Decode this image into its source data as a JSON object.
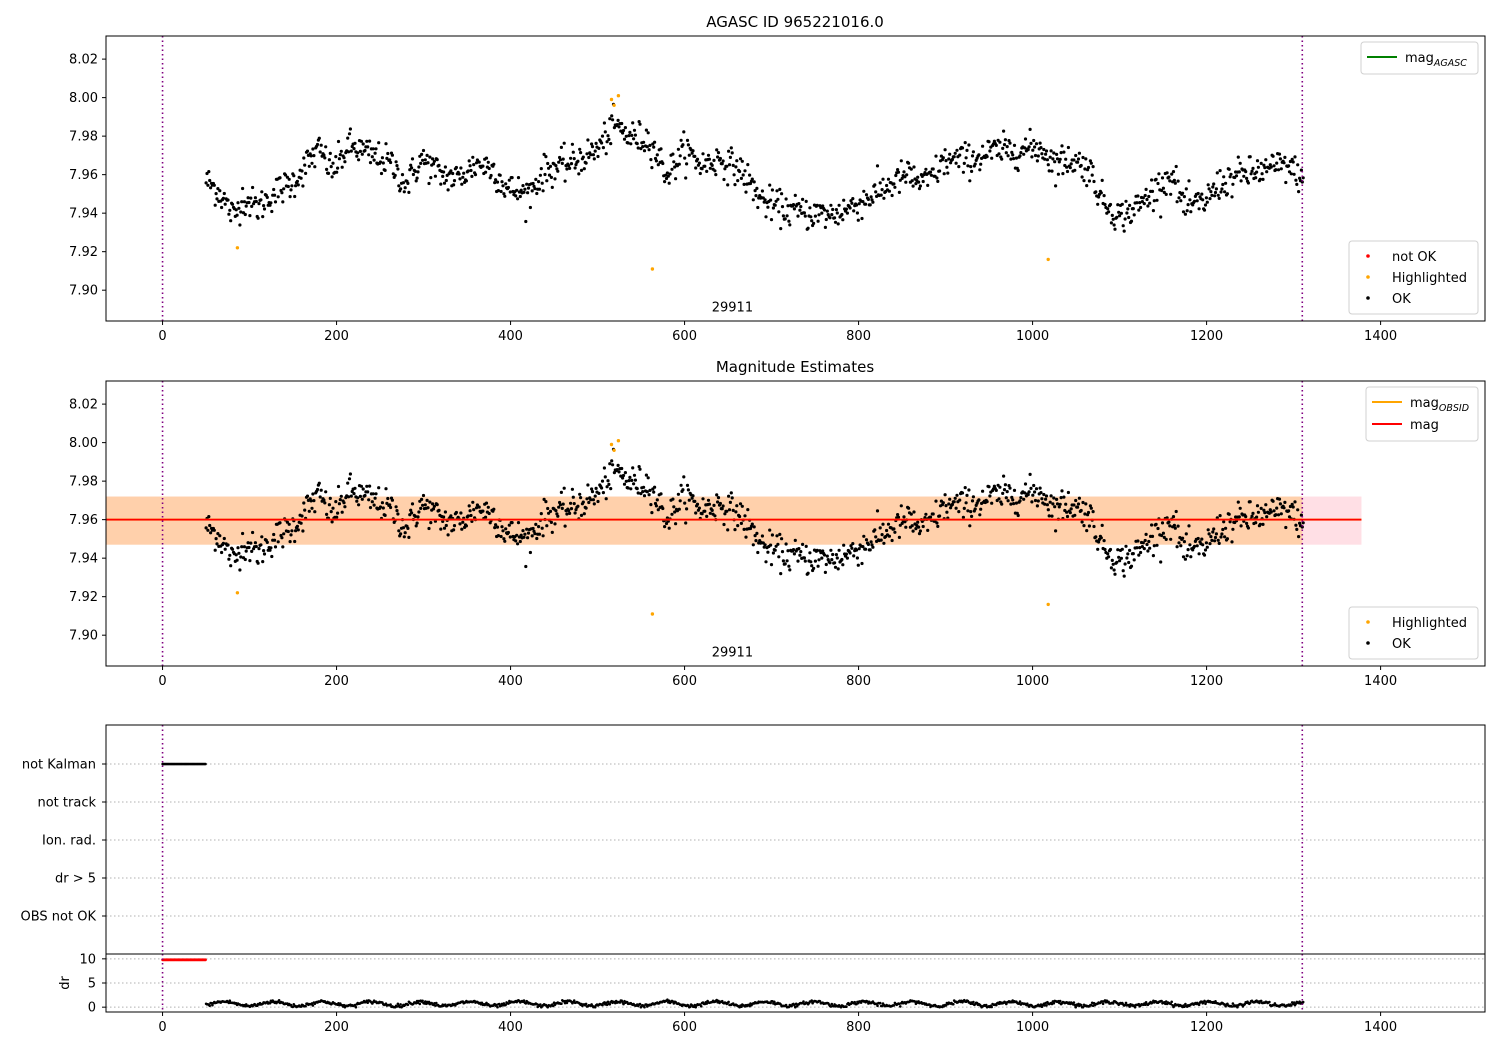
{
  "figure": {
    "top_title": "AGASC ID 965221016.0",
    "middle_title": "Magnitude Estimates",
    "obsid_label": "29911"
  },
  "chart_data": [
    {
      "id": "top",
      "type": "scatter",
      "title": "AGASC ID 965221016.0",
      "xlim": [
        -65,
        1520
      ],
      "ylim": [
        7.884,
        8.032
      ],
      "x_ticks": [
        0,
        200,
        400,
        600,
        800,
        1000,
        1200,
        1400
      ],
      "y_ticks": [
        7.9,
        7.92,
        7.94,
        7.96,
        7.98,
        8.0,
        8.02
      ],
      "vlines": [
        0,
        1310
      ],
      "annotation": "29911",
      "legend_lines": [
        {
          "name": "mag",
          "sub": "AGASC",
          "color": "#008000"
        }
      ],
      "legend_markers": [
        {
          "name": "not OK",
          "color": "#ff0000"
        },
        {
          "name": "Highlighted",
          "color": "#ffa500"
        },
        {
          "name": "OK",
          "color": "#000000"
        }
      ],
      "series": [
        {
          "name": "OK",
          "color": "#000000",
          "from_curve": true
        },
        {
          "name": "Highlighted",
          "color": "#ffa500",
          "points": [
            [
              86,
              7.922
            ],
            [
              516,
              7.999
            ],
            [
              519,
              7.996
            ],
            [
              524,
              8.001
            ],
            [
              563,
              7.911
            ],
            [
              1018,
              7.916
            ]
          ]
        }
      ]
    },
    {
      "id": "middle",
      "type": "scatter",
      "title": "Magnitude Estimates",
      "xlim": [
        -65,
        1520
      ],
      "ylim": [
        7.884,
        8.032
      ],
      "x_ticks": [
        0,
        200,
        400,
        600,
        800,
        1000,
        1200,
        1400
      ],
      "y_ticks": [
        7.9,
        7.92,
        7.94,
        7.96,
        7.98,
        8.0,
        8.02
      ],
      "vlines": [
        0,
        1310
      ],
      "annotation": "29911",
      "mag_line": 7.96,
      "mag_band": [
        7.947,
        7.972
      ],
      "obsid_band": [
        7.947,
        7.972
      ],
      "legend_lines": [
        {
          "name": "mag",
          "sub": "OBSID",
          "color": "#ffa500"
        },
        {
          "name": "mag",
          "sub": "",
          "color": "#ff0000"
        }
      ],
      "legend_markers": [
        {
          "name": "Highlighted",
          "color": "#ffa500"
        },
        {
          "name": "OK",
          "color": "#000000"
        }
      ],
      "series": [
        {
          "name": "OK",
          "color": "#000000",
          "from_curve": true
        },
        {
          "name": "Highlighted",
          "color": "#ffa500",
          "points": [
            [
              86,
              7.922
            ],
            [
              516,
              7.999
            ],
            [
              519,
              7.996
            ],
            [
              524,
              8.001
            ],
            [
              563,
              7.911
            ],
            [
              1018,
              7.916
            ]
          ]
        }
      ]
    },
    {
      "id": "flags",
      "type": "scatter",
      "xlim": [
        -65,
        1520
      ],
      "categories": [
        "not Kalman",
        "not track",
        "Ion. rad.",
        "dr > 5",
        "OBS not OK"
      ],
      "vlines": [
        0,
        1310
      ],
      "flag_runs": [
        {
          "category": "not Kalman",
          "x": [
            0,
            50
          ]
        }
      ]
    },
    {
      "id": "dr",
      "type": "scatter",
      "ylabel": "dr",
      "xlim": [
        -65,
        1520
      ],
      "ylim": [
        -1,
        11
      ],
      "x_ticks": [
        0,
        200,
        400,
        600,
        800,
        1000,
        1200,
        1400
      ],
      "y_ticks": [
        0,
        5,
        10
      ],
      "vlines": [
        0,
        1310
      ],
      "series": [
        {
          "name": "not OK",
          "color": "#ff0000",
          "x": [
            0,
            50
          ],
          "y": 9.8
        },
        {
          "name": "OK",
          "color": "#000000",
          "x": [
            50,
            1312
          ],
          "y_mean": 0.7
        }
      ]
    }
  ],
  "light_curve": {
    "x_range": [
      50,
      1312
    ],
    "step": 1.05,
    "knots": [
      [
        50,
        7.957
      ],
      [
        65,
        7.951
      ],
      [
        82,
        7.938
      ],
      [
        92,
        7.948
      ],
      [
        110,
        7.943
      ],
      [
        130,
        7.951
      ],
      [
        150,
        7.956
      ],
      [
        170,
        7.968
      ],
      [
        180,
        7.973
      ],
      [
        195,
        7.962
      ],
      [
        215,
        7.975
      ],
      [
        240,
        7.97
      ],
      [
        262,
        7.966
      ],
      [
        280,
        7.955
      ],
      [
        298,
        7.968
      ],
      [
        320,
        7.96
      ],
      [
        340,
        7.958
      ],
      [
        362,
        7.966
      ],
      [
        380,
        7.963
      ],
      [
        395,
        7.953
      ],
      [
        420,
        7.95
      ],
      [
        440,
        7.962
      ],
      [
        470,
        7.966
      ],
      [
        500,
        7.973
      ],
      [
        520,
        7.986
      ],
      [
        535,
        7.98
      ],
      [
        560,
        7.978
      ],
      [
        580,
        7.96
      ],
      [
        600,
        7.973
      ],
      [
        620,
        7.965
      ],
      [
        640,
        7.968
      ],
      [
        665,
        7.962
      ],
      [
        690,
        7.946
      ],
      [
        715,
        7.942
      ],
      [
        740,
        7.94
      ],
      [
        770,
        7.939
      ],
      [
        800,
        7.945
      ],
      [
        830,
        7.953
      ],
      [
        855,
        7.96
      ],
      [
        875,
        7.955
      ],
      [
        900,
        7.967
      ],
      [
        930,
        7.968
      ],
      [
        955,
        7.972
      ],
      [
        990,
        7.973
      ],
      [
        1010,
        7.974
      ],
      [
        1025,
        7.966
      ],
      [
        1045,
        7.968
      ],
      [
        1065,
        7.963
      ],
      [
        1080,
        7.947
      ],
      [
        1100,
        7.938
      ],
      [
        1120,
        7.943
      ],
      [
        1140,
        7.952
      ],
      [
        1160,
        7.96
      ],
      [
        1175,
        7.943
      ],
      [
        1195,
        7.945
      ],
      [
        1215,
        7.955
      ],
      [
        1240,
        7.96
      ],
      [
        1265,
        7.962
      ],
      [
        1290,
        7.965
      ],
      [
        1312,
        7.958
      ]
    ]
  }
}
